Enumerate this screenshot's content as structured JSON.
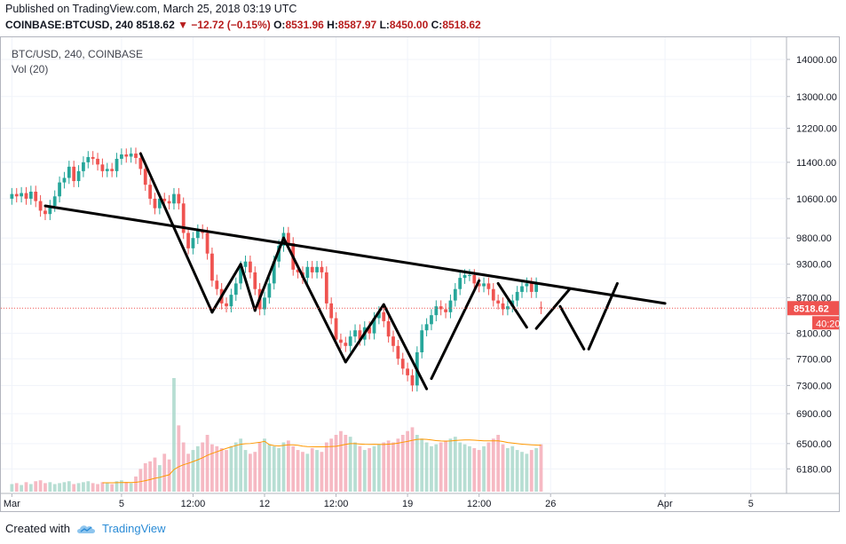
{
  "header": {
    "published": "Published on TradingView.com, March 25, 2018 03:19 UTC",
    "symbol": "COINBASE:BTCUSD, 240",
    "last": "8518.62",
    "change": "−12.72 (−0.15%)",
    "o_label": "O:",
    "o_value": "8531.96",
    "h_label": "H:",
    "h_value": "8587.97",
    "l_label": "L:",
    "l_value": "8450.00",
    "c_label": "C:",
    "c_value": "8518.62"
  },
  "legend": {
    "series": "BTC/USD, 240, COINBASE",
    "volume": "Vol (20)"
  },
  "footer": {
    "created_with": "Created with",
    "brand": "TradingView",
    "logo_icon": "tradingview-cloud-icon"
  },
  "colors": {
    "up": "#26a69a",
    "down": "#ef5350",
    "up_vol": "#a5d6c8",
    "down_vol": "#f4a7b4",
    "price_line": "#ef5350",
    "ma": "#ff9800",
    "trend": "#000000"
  },
  "chart_data": {
    "type": "candlestick",
    "symbol": "BTC/USD",
    "interval": "240",
    "exchange": "COINBASE",
    "y_scale": "log",
    "ylim": [
      6000,
      14300
    ],
    "y_ticks": [
      14000,
      13000,
      12200,
      11400,
      10600,
      9800,
      9300,
      8700,
      8100,
      7700,
      7300,
      6900,
      6500,
      6180
    ],
    "y_tick_labels": [
      "14000.00",
      "13000.00",
      "12200.00",
      "11400.00",
      "10600.00",
      "9800.00",
      "9300.00",
      "8700.00",
      "8100.00",
      "7700.00",
      "7300.00",
      "6900.00",
      "6500.00",
      "6180.00"
    ],
    "x_ticks": [
      {
        "label": "Mar",
        "bar": 0
      },
      {
        "label": "5",
        "bar": 23
      },
      {
        "label": "12:00",
        "bar": 38
      },
      {
        "label": "12",
        "bar": 53
      },
      {
        "label": "12:00",
        "bar": 68
      },
      {
        "label": "19",
        "bar": 83
      },
      {
        "label": "12:00",
        "bar": 98
      },
      {
        "label": "26",
        "bar": 113
      },
      {
        "label": "Apr",
        "bar": 137
      },
      {
        "label": "5",
        "bar": 155
      }
    ],
    "x_bar_range": [
      -1,
      161
    ],
    "last_price": 8518.62,
    "last_price_label": "8518.62",
    "countdown_label": "40:20",
    "closes": [
      10700,
      10650,
      10720,
      10600,
      10750,
      10550,
      10350,
      10280,
      10450,
      10650,
      10950,
      11050,
      11300,
      10980,
      11200,
      11400,
      11520,
      11480,
      11350,
      11200,
      11250,
      11200,
      11480,
      11580,
      11530,
      11600,
      11500,
      11250,
      10900,
      10600,
      10400,
      10600,
      10550,
      10500,
      10700,
      10500,
      9900,
      9600,
      9800,
      9950,
      9900,
      9500,
      9000,
      8850,
      8600,
      8550,
      8750,
      8950,
      9250,
      9350,
      9150,
      8850,
      8500,
      8700,
      8950,
      9350,
      9650,
      9900,
      9700,
      9200,
      9150,
      9050,
      9250,
      9150,
      9250,
      9150,
      8600,
      8350,
      8000,
      7950,
      7900,
      8050,
      8150,
      8000,
      8200,
      8100,
      8350,
      8450,
      8300,
      8050,
      7900,
      7700,
      7550,
      7450,
      7300,
      7800,
      8150,
      8250,
      8400,
      8550,
      8500,
      8450,
      8650,
      8850,
      9050,
      9100,
      9100,
      8950,
      8900,
      8950,
      8850,
      8650,
      8600,
      8500,
      8550,
      8650,
      8800,
      8900,
      8950,
      8800,
      8950,
      8520
    ],
    "opens": [
      10600,
      10700,
      10650,
      10720,
      10600,
      10750,
      10550,
      10350,
      10280,
      10450,
      10650,
      10950,
      11050,
      11300,
      10980,
      11200,
      11400,
      11520,
      11480,
      11350,
      11200,
      11250,
      11200,
      11480,
      11580,
      11530,
      11600,
      11500,
      11250,
      10900,
      10600,
      10400,
      10600,
      10550,
      10500,
      10700,
      10500,
      9900,
      9600,
      9800,
      9950,
      9900,
      9500,
      9000,
      8850,
      8600,
      8550,
      8750,
      8950,
      9250,
      9350,
      9150,
      8850,
      8500,
      8700,
      8950,
      9350,
      9650,
      9900,
      9700,
      9200,
      9150,
      9050,
      9250,
      9150,
      9250,
      9150,
      8600,
      8350,
      8000,
      7950,
      7900,
      8050,
      8150,
      8000,
      8200,
      8100,
      8350,
      8450,
      8300,
      8050,
      7900,
      7700,
      7550,
      7450,
      7300,
      7800,
      8150,
      8250,
      8400,
      8550,
      8500,
      8450,
      8650,
      8850,
      9050,
      9100,
      9100,
      8950,
      8900,
      8950,
      8850,
      8650,
      8600,
      8500,
      8550,
      8650,
      8800,
      8900,
      8950,
      8800,
      8532
    ],
    "volumes": [
      40,
      45,
      35,
      50,
      40,
      55,
      60,
      45,
      50,
      40,
      45,
      50,
      55,
      40,
      45,
      50,
      55,
      45,
      40,
      50,
      45,
      40,
      55,
      60,
      50,
      45,
      80,
      120,
      150,
      160,
      180,
      140,
      200,
      170,
      600,
      350,
      260,
      200,
      220,
      240,
      260,
      300,
      250,
      240,
      230,
      220,
      240,
      260,
      280,
      220,
      200,
      210,
      260,
      280,
      250,
      240,
      230,
      260,
      270,
      240,
      220,
      210,
      200,
      230,
      220,
      210,
      260,
      280,
      300,
      320,
      300,
      290,
      260,
      240,
      220,
      230,
      240,
      250,
      260,
      270,
      260,
      280,
      300,
      320,
      340,
      300,
      280,
      260,
      240,
      250,
      260,
      270,
      280,
      290,
      260,
      250,
      240,
      230,
      220,
      240,
      260,
      280,
      300,
      250,
      230,
      240,
      220,
      210,
      200,
      220,
      230,
      250
    ],
    "trendlines": [
      {
        "name": "descending-neckline",
        "points": [
          [
            7,
            10450
          ],
          [
            137,
            8600
          ]
        ]
      },
      {
        "name": "pattern-path-1",
        "points": [
          [
            27,
            11600
          ],
          [
            42,
            8450
          ]
        ]
      },
      {
        "name": "pattern-path-2",
        "points": [
          [
            42,
            8450
          ],
          [
            48,
            9300
          ]
        ]
      },
      {
        "name": "pattern-path-3",
        "points": [
          [
            48,
            9300
          ],
          [
            51,
            8480
          ]
        ]
      },
      {
        "name": "pattern-path-4",
        "points": [
          [
            51,
            8480
          ],
          [
            57,
            9800
          ]
        ]
      },
      {
        "name": "pattern-path-5",
        "points": [
          [
            57,
            9800
          ],
          [
            70,
            7650
          ]
        ]
      },
      {
        "name": "pattern-path-6",
        "points": [
          [
            70,
            7650
          ],
          [
            78,
            8580
          ]
        ]
      },
      {
        "name": "pattern-path-7",
        "points": [
          [
            78,
            8580
          ],
          [
            87,
            7250
          ]
        ]
      },
      {
        "name": "pattern-path-8",
        "points": [
          [
            88,
            7400
          ],
          [
            98,
            9000
          ]
        ]
      },
      {
        "name": "pattern-path-9",
        "points": [
          [
            102,
            8950
          ],
          [
            108,
            8200
          ]
        ]
      },
      {
        "name": "pattern-path-10",
        "points": [
          [
            110,
            8180
          ],
          [
            117,
            8850
          ]
        ]
      },
      {
        "name": "pattern-path-11",
        "points": [
          [
            115,
            8550
          ],
          [
            120,
            7850
          ]
        ]
      },
      {
        "name": "pattern-path-12",
        "points": [
          [
            121,
            7850
          ],
          [
            127,
            8950
          ]
        ]
      }
    ]
  }
}
